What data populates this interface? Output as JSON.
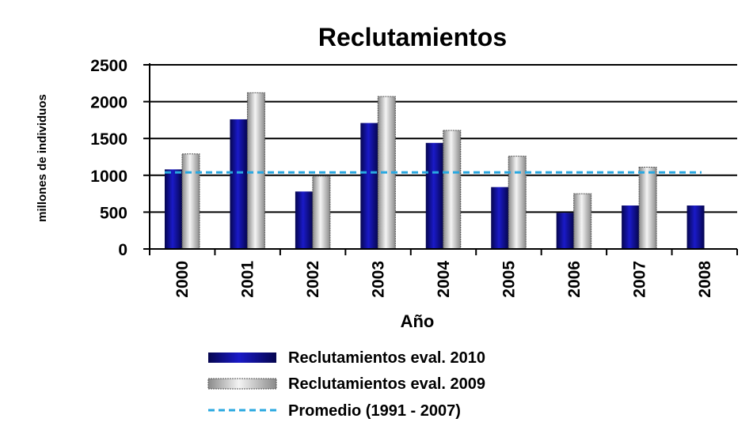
{
  "chart_data": {
    "type": "bar",
    "title": "Reclutamientos",
    "xlabel": "Año",
    "ylabel": "millones de individuos",
    "ylim": [
      0,
      2500
    ],
    "yticks": [
      0,
      500,
      1000,
      1500,
      2000,
      2500
    ],
    "categories": [
      "2000",
      "2001",
      "2002",
      "2003",
      "2004",
      "2005",
      "2006",
      "2007",
      "2008"
    ],
    "series": [
      {
        "name": "Reclutamientos eval. 2010",
        "values": [
          1080,
          1760,
          780,
          1710,
          1440,
          840,
          490,
          590,
          590
        ],
        "color": "#0a0a8c"
      },
      {
        "name": "Reclutamientos eval. 2009",
        "values": [
          1290,
          2120,
          990,
          2070,
          1610,
          1260,
          750,
          1110,
          null
        ],
        "color": "#c8c8c8"
      }
    ],
    "reference_lines": [
      {
        "name": "Promedio (1991 - 2007)",
        "value": 1040,
        "color": "#29a8e0",
        "style": "dashed"
      }
    ],
    "grid": true,
    "legend_position": "bottom"
  }
}
